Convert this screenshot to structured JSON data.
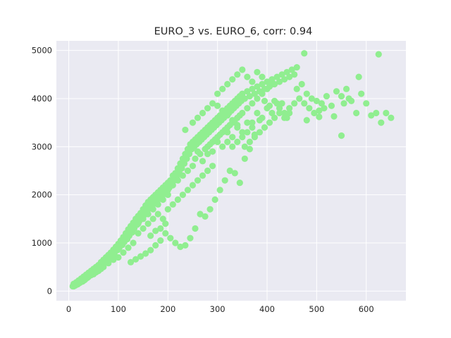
{
  "chart_data": {
    "type": "scatter",
    "title": "EURO_3 vs. EURO_6, corr: 0.94",
    "xlabel": "",
    "ylabel": "",
    "xlim": [
      -25,
      680
    ],
    "ylim": [
      -200,
      5200
    ],
    "xticks": [
      0,
      100,
      200,
      300,
      400,
      500,
      600
    ],
    "yticks": [
      0,
      1000,
      2000,
      3000,
      4000,
      5000
    ],
    "grid": true,
    "background": "#eaeaf2",
    "point_color": "#90ee90",
    "points": [
      [
        8,
        100
      ],
      [
        10,
        150
      ],
      [
        12,
        120
      ],
      [
        15,
        180
      ],
      [
        18,
        140
      ],
      [
        20,
        220
      ],
      [
        22,
        170
      ],
      [
        25,
        260
      ],
      [
        28,
        200
      ],
      [
        30,
        300
      ],
      [
        32,
        230
      ],
      [
        35,
        340
      ],
      [
        38,
        280
      ],
      [
        40,
        380
      ],
      [
        42,
        320
      ],
      [
        45,
        420
      ],
      [
        48,
        360
      ],
      [
        50,
        460
      ],
      [
        52,
        400
      ],
      [
        55,
        500
      ],
      [
        58,
        450
      ],
      [
        60,
        540
      ],
      [
        62,
        480
      ],
      [
        65,
        600
      ],
      [
        68,
        520
      ],
      [
        70,
        650
      ],
      [
        72,
        580
      ],
      [
        75,
        700
      ],
      [
        78,
        620
      ],
      [
        80,
        750
      ],
      [
        82,
        680
      ],
      [
        85,
        800
      ],
      [
        88,
        720
      ],
      [
        90,
        860
      ],
      [
        92,
        780
      ],
      [
        95,
        920
      ],
      [
        98,
        850
      ],
      [
        100,
        980
      ],
      [
        102,
        900
      ],
      [
        105,
        1050
      ],
      [
        108,
        960
      ],
      [
        110,
        1120
      ],
      [
        112,
        1020
      ],
      [
        115,
        1200
      ],
      [
        118,
        1080
      ],
      [
        120,
        1280
      ],
      [
        122,
        1150
      ],
      [
        125,
        1350
      ],
      [
        128,
        1220
      ],
      [
        130,
        1420
      ],
      [
        132,
        1300
      ],
      [
        135,
        1500
      ],
      [
        138,
        1380
      ],
      [
        140,
        1560
      ],
      [
        142,
        1450
      ],
      [
        145,
        1620
      ],
      [
        148,
        1520
      ],
      [
        150,
        1700
      ],
      [
        152,
        1580
      ],
      [
        155,
        1780
      ],
      [
        158,
        1650
      ],
      [
        160,
        1850
      ],
      [
        162,
        1720
      ],
      [
        165,
        1900
      ],
      [
        168,
        1780
      ],
      [
        170,
        1950
      ],
      [
        172,
        1850
      ],
      [
        175,
        2000
      ],
      [
        178,
        1900
      ],
      [
        180,
        2050
      ],
      [
        182,
        1950
      ],
      [
        185,
        2100
      ],
      [
        188,
        2000
      ],
      [
        190,
        2150
      ],
      [
        192,
        2050
      ],
      [
        195,
        2200
      ],
      [
        198,
        2100
      ],
      [
        200,
        2250
      ],
      [
        203,
        2150
      ],
      [
        205,
        2300
      ],
      [
        208,
        2200
      ],
      [
        210,
        2400
      ],
      [
        213,
        2300
      ],
      [
        215,
        2450
      ],
      [
        218,
        2350
      ],
      [
        220,
        2550
      ],
      [
        223,
        2450
      ],
      [
        225,
        2650
      ],
      [
        228,
        2550
      ],
      [
        230,
        2750
      ],
      [
        233,
        2650
      ],
      [
        235,
        2850
      ],
      [
        238,
        2750
      ],
      [
        240,
        2950
      ],
      [
        243,
        2850
      ],
      [
        245,
        3050
      ],
      [
        248,
        2950
      ],
      [
        250,
        3100
      ],
      [
        253,
        3000
      ],
      [
        255,
        3150
      ],
      [
        258,
        3050
      ],
      [
        260,
        3200
      ],
      [
        263,
        3100
      ],
      [
        265,
        3250
      ],
      [
        268,
        3150
      ],
      [
        270,
        3300
      ],
      [
        273,
        3200
      ],
      [
        275,
        3350
      ],
      [
        278,
        3250
      ],
      [
        280,
        3400
      ],
      [
        283,
        3300
      ],
      [
        285,
        3450
      ],
      [
        288,
        3350
      ],
      [
        290,
        3500
      ],
      [
        293,
        3400
      ],
      [
        295,
        3550
      ],
      [
        298,
        3450
      ],
      [
        300,
        3600
      ],
      [
        303,
        3500
      ],
      [
        305,
        3650
      ],
      [
        308,
        3550
      ],
      [
        310,
        3700
      ],
      [
        313,
        3600
      ],
      [
        315,
        3750
      ],
      [
        318,
        3650
      ],
      [
        320,
        3800
      ],
      [
        323,
        3700
      ],
      [
        325,
        3850
      ],
      [
        328,
        3750
      ],
      [
        330,
        3900
      ],
      [
        333,
        3800
      ],
      [
        335,
        3950
      ],
      [
        338,
        3850
      ],
      [
        340,
        4000
      ],
      [
        343,
        3900
      ],
      [
        345,
        4050
      ],
      [
        348,
        3950
      ],
      [
        350,
        4100
      ],
      [
        355,
        4000
      ],
      [
        360,
        4150
      ],
      [
        365,
        4050
      ],
      [
        370,
        4200
      ],
      [
        375,
        4100
      ],
      [
        380,
        4250
      ],
      [
        385,
        4150
      ],
      [
        390,
        4300
      ],
      [
        395,
        4200
      ],
      [
        400,
        4350
      ],
      [
        405,
        4250
      ],
      [
        410,
        4400
      ],
      [
        415,
        4300
      ],
      [
        420,
        4450
      ],
      [
        425,
        4350
      ],
      [
        430,
        4500
      ],
      [
        435,
        4400
      ],
      [
        440,
        4550
      ],
      [
        445,
        4450
      ],
      [
        450,
        4600
      ],
      [
        455,
        4500
      ],
      [
        460,
        4650
      ],
      [
        235,
        3350
      ],
      [
        260,
        2900
      ],
      [
        280,
        2850
      ],
      [
        300,
        3100
      ],
      [
        320,
        3300
      ],
      [
        340,
        3400
      ],
      [
        360,
        3500
      ],
      [
        380,
        3700
      ],
      [
        400,
        3800
      ],
      [
        420,
        3900
      ],
      [
        250,
        2600
      ],
      [
        270,
        2700
      ],
      [
        290,
        2900
      ],
      [
        310,
        3000
      ],
      [
        330,
        3200
      ],
      [
        350,
        3300
      ],
      [
        370,
        3500
      ],
      [
        390,
        3600
      ],
      [
        410,
        3700
      ],
      [
        430,
        3900
      ],
      [
        200,
        1700
      ],
      [
        210,
        1800
      ],
      [
        220,
        1900
      ],
      [
        230,
        2000
      ],
      [
        240,
        2100
      ],
      [
        250,
        2200
      ],
      [
        260,
        2300
      ],
      [
        270,
        2400
      ],
      [
        280,
        2500
      ],
      [
        290,
        2600
      ],
      [
        140,
        1200
      ],
      [
        150,
        1300
      ],
      [
        160,
        1400
      ],
      [
        170,
        1500
      ],
      [
        180,
        1600
      ],
      [
        190,
        1500
      ],
      [
        195,
        1400
      ],
      [
        185,
        1300
      ],
      [
        175,
        1250
      ],
      [
        165,
        1150
      ],
      [
        100,
        700
      ],
      [
        110,
        800
      ],
      [
        120,
        900
      ],
      [
        130,
        1000
      ],
      [
        90,
        650
      ],
      [
        80,
        580
      ],
      [
        70,
        500
      ],
      [
        60,
        420
      ],
      [
        50,
        350
      ],
      [
        40,
        300
      ],
      [
        30,
        220
      ],
      [
        20,
        160
      ],
      [
        15,
        130
      ],
      [
        12,
        110
      ],
      [
        10,
        100
      ],
      [
        25,
        190
      ],
      [
        35,
        260
      ],
      [
        45,
        330
      ],
      [
        55,
        390
      ],
      [
        65,
        460
      ],
      [
        460,
        4200
      ],
      [
        470,
        4300
      ],
      [
        480,
        4100
      ],
      [
        490,
        4000
      ],
      [
        500,
        3950
      ],
      [
        510,
        3900
      ],
      [
        520,
        4050
      ],
      [
        530,
        3850
      ],
      [
        540,
        4150
      ],
      [
        550,
        4050
      ],
      [
        555,
        3900
      ],
      [
        560,
        4200
      ],
      [
        565,
        4000
      ],
      [
        570,
        3950
      ],
      [
        580,
        3700
      ],
      [
        590,
        4100
      ],
      [
        600,
        3900
      ],
      [
        610,
        3650
      ],
      [
        620,
        3700
      ],
      [
        630,
        3500
      ],
      [
        640,
        3700
      ],
      [
        650,
        3600
      ],
      [
        625,
        4920
      ],
      [
        475,
        4940
      ],
      [
        585,
        4450
      ],
      [
        550,
        3230
      ],
      [
        480,
        3550
      ],
      [
        440,
        3600
      ],
      [
        505,
        3620
      ],
      [
        535,
        3630
      ],
      [
        415,
        3950
      ],
      [
        405,
        3850
      ],
      [
        395,
        3950
      ],
      [
        385,
        3550
      ],
      [
        375,
        3250
      ],
      [
        365,
        2950
      ],
      [
        355,
        2750
      ],
      [
        345,
        2250
      ],
      [
        335,
        2450
      ],
      [
        325,
        2500
      ],
      [
        315,
        2300
      ],
      [
        305,
        2100
      ],
      [
        295,
        1900
      ],
      [
        285,
        1700
      ],
      [
        275,
        1550
      ],
      [
        265,
        1600
      ],
      [
        255,
        1300
      ],
      [
        245,
        1100
      ],
      [
        235,
        950
      ],
      [
        225,
        920
      ],
      [
        215,
        1000
      ],
      [
        205,
        1100
      ],
      [
        195,
        1200
      ],
      [
        185,
        1050
      ],
      [
        175,
        950
      ],
      [
        165,
        850
      ],
      [
        155,
        780
      ],
      [
        145,
        720
      ],
      [
        135,
        660
      ],
      [
        125,
        600
      ],
      [
        300,
        4100
      ],
      [
        310,
        4200
      ],
      [
        320,
        4300
      ],
      [
        330,
        4400
      ],
      [
        340,
        4500
      ],
      [
        350,
        4600
      ],
      [
        360,
        4450
      ],
      [
        370,
        4350
      ],
      [
        380,
        4550
      ],
      [
        390,
        4450
      ],
      [
        320,
        3400
      ],
      [
        330,
        3500
      ],
      [
        340,
        3600
      ],
      [
        350,
        3700
      ],
      [
        360,
        3800
      ],
      [
        370,
        3900
      ],
      [
        380,
        4000
      ],
      [
        390,
        4100
      ],
      [
        400,
        4200
      ],
      [
        410,
        4300
      ],
      [
        280,
        3000
      ],
      [
        290,
        3100
      ],
      [
        300,
        3200
      ],
      [
        310,
        3300
      ],
      [
        320,
        3100
      ],
      [
        330,
        3000
      ],
      [
        340,
        3100
      ],
      [
        350,
        3200
      ],
      [
        360,
        3300
      ],
      [
        370,
        3400
      ],
      [
        250,
        3500
      ],
      [
        260,
        3600
      ],
      [
        270,
        3700
      ],
      [
        280,
        3800
      ],
      [
        290,
        3900
      ],
      [
        300,
        3850
      ],
      [
        310,
        3750
      ],
      [
        320,
        3650
      ],
      [
        330,
        3550
      ],
      [
        340,
        3450
      ],
      [
        240,
        2500
      ],
      [
        230,
        2400
      ],
      [
        220,
        2300
      ],
      [
        210,
        2200
      ],
      [
        200,
        2100
      ],
      [
        190,
        2000
      ],
      [
        180,
        1900
      ],
      [
        170,
        1800
      ],
      [
        160,
        1700
      ],
      [
        150,
        1600
      ],
      [
        110,
        1100
      ],
      [
        120,
        1200
      ],
      [
        130,
        1300
      ],
      [
        140,
        1400
      ],
      [
        150,
        1500
      ],
      [
        160,
        1600
      ],
      [
        170,
        1700
      ],
      [
        180,
        1800
      ],
      [
        190,
        1900
      ],
      [
        200,
        2000
      ],
      [
        255,
        2750
      ],
      [
        265,
        2850
      ],
      [
        275,
        2950
      ],
      [
        285,
        3050
      ],
      [
        295,
        3150
      ],
      [
        305,
        3250
      ],
      [
        315,
        3350
      ],
      [
        325,
        3450
      ],
      [
        335,
        3550
      ],
      [
        345,
        3650
      ],
      [
        425,
        3800
      ],
      [
        435,
        3700
      ],
      [
        445,
        3800
      ],
      [
        455,
        3900
      ],
      [
        465,
        4000
      ],
      [
        475,
        3900
      ],
      [
        485,
        3800
      ],
      [
        495,
        3700
      ],
      [
        505,
        3750
      ],
      [
        515,
        3800
      ],
      [
        355,
        3000
      ],
      [
        365,
        3100
      ],
      [
        375,
        3200
      ],
      [
        385,
        3300
      ],
      [
        395,
        3400
      ],
      [
        405,
        3500
      ],
      [
        415,
        3600
      ],
      [
        425,
        3700
      ],
      [
        435,
        3600
      ],
      [
        445,
        3700
      ]
    ]
  }
}
